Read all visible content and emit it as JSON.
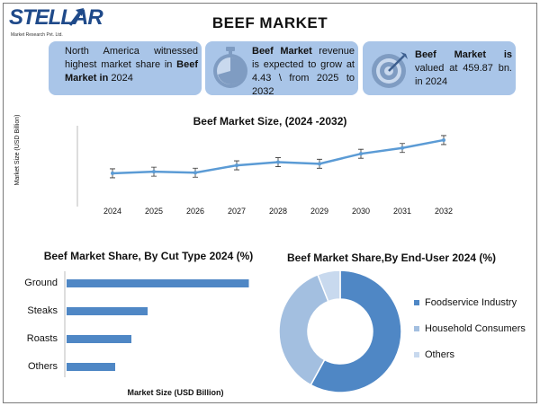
{
  "logo": {
    "name": "STELLAR",
    "tagline": "Market Research Pvt. Ltd."
  },
  "title": "BEEF MARKET",
  "cards": [
    {
      "pre": "North America witnessed highest market share in ",
      "bold": "Beef Market in",
      "post": " 2024"
    },
    {
      "pre": "",
      "bold": "Beef Market",
      "post": " revenue is expected to grow at 4.43 \\ from 2025 to 2032"
    },
    {
      "pre": "",
      "bold": "Beef Market is",
      "post": " valued at 459.87 bn. in 2024"
    }
  ],
  "colors": {
    "card": "#a9c5e8",
    "line": "#5b9bd5",
    "bar": "#4f87c5",
    "donut1": "#4f87c5",
    "donut2": "#a3bfe0",
    "donut3": "#c8d9ee"
  },
  "chart_data": [
    {
      "type": "line",
      "title": "Beef Market Size, (2024 -2032)",
      "ylabel": "Market Size (USD Billion)",
      "xlabel": "",
      "x": [
        "2024",
        "2025",
        "2026",
        "2027",
        "2028",
        "2029",
        "2030",
        "2031",
        "2032"
      ],
      "series": [
        {
          "values": [
            459.87,
            463,
            461,
            475,
            481,
            478,
            497,
            508,
            523
          ]
        }
      ],
      "ylim": [
        400,
        540
      ],
      "error_bars": true,
      "grid": false
    },
    {
      "type": "bar",
      "orientation": "horizontal",
      "title": "Beef Market Share, By Cut Type 2024 (%)",
      "xlabel": "Market Size (USD Billion)",
      "categories": [
        "Ground",
        "Steaks",
        "Roasts",
        "Others"
      ],
      "values": [
        45,
        20,
        16,
        12
      ],
      "xlim": [
        0,
        50
      ]
    },
    {
      "type": "pie",
      "donut": true,
      "title": "Beef Market Share,By End-User 2024 (%)",
      "labels": [
        "Foodservice Industry",
        "Household Consumers",
        "Others"
      ],
      "values": [
        58,
        36,
        6
      ],
      "legend": "right"
    }
  ]
}
